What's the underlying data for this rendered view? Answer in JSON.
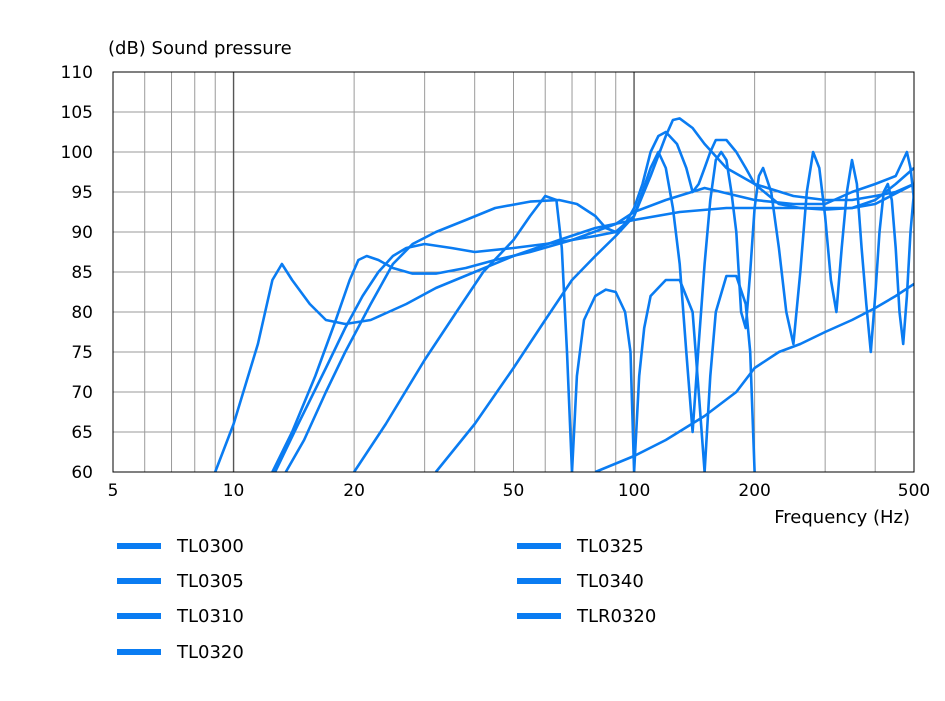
{
  "chart_data": {
    "type": "line",
    "title": "",
    "ylabel": "(dB)  Sound pressure",
    "xlabel": "Frequency  (Hz)",
    "x_scale": "log",
    "xlim": [
      5,
      500
    ],
    "ylim": [
      60,
      110
    ],
    "x_ticks": [
      5,
      10,
      20,
      50,
      100,
      200,
      500
    ],
    "x_tick_labels": [
      "5",
      "10",
      "20",
      "50",
      "100",
      "200",
      "500"
    ],
    "y_ticks": [
      60,
      65,
      70,
      75,
      80,
      85,
      90,
      95,
      100,
      105,
      110
    ],
    "y_tick_labels": [
      "60",
      "65",
      "70",
      "75",
      "80",
      "85",
      "90",
      "95",
      "100",
      "105",
      "110"
    ],
    "grid": true,
    "line_color": "#0a7cf2",
    "legend_position": "bottom",
    "series": [
      {
        "name": "TL0300",
        "points": [
          [
            9,
            60
          ],
          [
            10,
            66
          ],
          [
            11.5,
            76
          ],
          [
            12.5,
            84
          ],
          [
            13.2,
            86
          ],
          [
            14,
            84
          ],
          [
            15.5,
            81
          ],
          [
            17,
            79
          ],
          [
            19,
            78.5
          ],
          [
            22,
            79
          ],
          [
            27,
            81
          ],
          [
            32,
            83
          ],
          [
            40,
            85
          ],
          [
            50,
            87
          ],
          [
            65,
            89
          ],
          [
            80,
            90.5
          ],
          [
            100,
            91.5
          ],
          [
            130,
            92.5
          ],
          [
            170,
            93
          ],
          [
            200,
            93
          ],
          [
            250,
            93
          ],
          [
            300,
            93
          ],
          [
            350,
            93
          ],
          [
            400,
            93.5
          ],
          [
            500,
            96
          ]
        ]
      },
      {
        "name": "TL0305",
        "points": [
          [
            12.5,
            60
          ],
          [
            14,
            65
          ],
          [
            16,
            72
          ],
          [
            18,
            79
          ],
          [
            19.5,
            84
          ],
          [
            20.5,
            86.5
          ],
          [
            21.5,
            87
          ],
          [
            23,
            86.5
          ],
          [
            25,
            85.5
          ],
          [
            28,
            84.8
          ],
          [
            32,
            84.8
          ],
          [
            38,
            85.5
          ],
          [
            45,
            86.5
          ],
          [
            55,
            87.5
          ],
          [
            70,
            89
          ],
          [
            90,
            91
          ],
          [
            100,
            92.5
          ],
          [
            120,
            94
          ],
          [
            150,
            95.5
          ],
          [
            200,
            94
          ],
          [
            250,
            93.5
          ],
          [
            300,
            93.5
          ],
          [
            350,
            95
          ],
          [
            400,
            96
          ],
          [
            450,
            97
          ],
          [
            470,
            99
          ],
          [
            480,
            100
          ],
          [
            490,
            98
          ],
          [
            500,
            94
          ]
        ]
      },
      {
        "name": "TL0310",
        "points": [
          [
            12.7,
            60
          ],
          [
            14.5,
            66
          ],
          [
            17,
            73
          ],
          [
            19,
            78
          ],
          [
            21,
            82
          ],
          [
            23,
            85
          ],
          [
            25,
            87
          ],
          [
            27,
            88
          ],
          [
            30,
            88.5
          ],
          [
            35,
            88
          ],
          [
            40,
            87.5
          ],
          [
            50,
            88
          ],
          [
            60,
            88.5
          ],
          [
            70,
            89
          ],
          [
            80,
            89.5
          ],
          [
            90,
            90
          ],
          [
            100,
            92
          ],
          [
            110,
            97
          ],
          [
            120,
            102
          ],
          [
            125,
            104
          ],
          [
            130,
            104.2
          ],
          [
            140,
            103
          ],
          [
            150,
            101
          ],
          [
            170,
            98
          ],
          [
            200,
            96
          ],
          [
            250,
            94.5
          ],
          [
            300,
            94
          ],
          [
            350,
            94
          ],
          [
            400,
            94.5
          ],
          [
            450,
            95
          ],
          [
            500,
            96
          ]
        ]
      },
      {
        "name": "TL0320",
        "points": [
          [
            13.5,
            60
          ],
          [
            15,
            64
          ],
          [
            17,
            70
          ],
          [
            19,
            75
          ],
          [
            22,
            81
          ],
          [
            25,
            86
          ],
          [
            28,
            88.5
          ],
          [
            32,
            90
          ],
          [
            38,
            91.5
          ],
          [
            45,
            93
          ],
          [
            55,
            93.8
          ],
          [
            65,
            94
          ],
          [
            72,
            93.5
          ],
          [
            80,
            92
          ],
          [
            85,
            90.5
          ],
          [
            90,
            90
          ],
          [
            95,
            91
          ],
          [
            100,
            93
          ],
          [
            105,
            96
          ],
          [
            110,
            100
          ],
          [
            115,
            102
          ],
          [
            120,
            102.5
          ],
          [
            128,
            101
          ],
          [
            135,
            98
          ],
          [
            140,
            95
          ],
          [
            145,
            96
          ],
          [
            150,
            98
          ],
          [
            155,
            100
          ],
          [
            160,
            101.5
          ],
          [
            170,
            101.5
          ],
          [
            180,
            100
          ],
          [
            190,
            98
          ],
          [
            200,
            96
          ],
          [
            230,
            93.5
          ],
          [
            260,
            93
          ],
          [
            300,
            92.8
          ],
          [
            350,
            93
          ],
          [
            400,
            94
          ],
          [
            450,
            96
          ],
          [
            500,
            98
          ]
        ]
      },
      {
        "name": "TL0325",
        "points": [
          [
            20,
            60
          ],
          [
            24,
            66
          ],
          [
            30,
            74
          ],
          [
            36,
            80
          ],
          [
            42,
            85
          ],
          [
            50,
            89
          ],
          [
            55,
            92
          ],
          [
            60,
            94.5
          ],
          [
            64,
            94
          ],
          [
            66,
            88
          ],
          [
            68,
            75
          ],
          [
            70,
            60
          ],
          [
            72,
            72
          ],
          [
            75,
            79
          ],
          [
            80,
            82
          ],
          [
            85,
            82.8
          ],
          [
            90,
            82.5
          ],
          [
            95,
            80
          ],
          [
            98,
            75
          ],
          [
            100,
            60
          ],
          [
            103,
            72
          ],
          [
            106,
            78
          ],
          [
            110,
            82
          ],
          [
            120,
            84
          ],
          [
            130,
            84
          ],
          [
            140,
            80
          ],
          [
            145,
            70
          ],
          [
            150,
            60
          ],
          [
            155,
            72
          ],
          [
            160,
            80
          ],
          [
            170,
            84.5
          ],
          [
            180,
            84.5
          ],
          [
            190,
            81
          ],
          [
            195,
            75
          ],
          [
            200,
            60
          ]
        ]
      },
      {
        "name": "TL0340",
        "points": [
          [
            32,
            60
          ],
          [
            40,
            66
          ],
          [
            50,
            73
          ],
          [
            60,
            79
          ],
          [
            70,
            84
          ],
          [
            80,
            87
          ],
          [
            90,
            89.5
          ],
          [
            100,
            92
          ],
          [
            110,
            98
          ],
          [
            115,
            100
          ],
          [
            120,
            98
          ],
          [
            125,
            93
          ],
          [
            130,
            86
          ],
          [
            135,
            75
          ],
          [
            140,
            65
          ],
          [
            145,
            76
          ],
          [
            150,
            86
          ],
          [
            155,
            94
          ],
          [
            160,
            99
          ],
          [
            165,
            100
          ],
          [
            170,
            99
          ],
          [
            175,
            95
          ],
          [
            180,
            90
          ],
          [
            185,
            80
          ],
          [
            190,
            78
          ],
          [
            195,
            85
          ],
          [
            200,
            93
          ],
          [
            205,
            97
          ],
          [
            210,
            98
          ],
          [
            220,
            95
          ],
          [
            230,
            88
          ],
          [
            240,
            80
          ],
          [
            250,
            76
          ],
          [
            260,
            85
          ],
          [
            270,
            95
          ],
          [
            280,
            100
          ],
          [
            290,
            98
          ],
          [
            300,
            92
          ],
          [
            310,
            84
          ],
          [
            320,
            80
          ],
          [
            330,
            88
          ],
          [
            340,
            95
          ],
          [
            350,
            99
          ],
          [
            360,
            96
          ],
          [
            370,
            88
          ],
          [
            380,
            81
          ],
          [
            390,
            75
          ],
          [
            400,
            82
          ],
          [
            410,
            90
          ],
          [
            420,
            95
          ],
          [
            430,
            96
          ],
          [
            440,
            94
          ],
          [
            450,
            88
          ],
          [
            460,
            80
          ],
          [
            470,
            76
          ],
          [
            480,
            82
          ],
          [
            490,
            90
          ],
          [
            500,
            95
          ]
        ]
      },
      {
        "name": "TLR0320",
        "points": [
          [
            80,
            60
          ],
          [
            100,
            62
          ],
          [
            120,
            64
          ],
          [
            150,
            67
          ],
          [
            180,
            70
          ],
          [
            200,
            73
          ],
          [
            230,
            75
          ],
          [
            260,
            76
          ],
          [
            300,
            77.5
          ],
          [
            350,
            79
          ],
          [
            400,
            80.5
          ],
          [
            450,
            82
          ],
          [
            500,
            83.5
          ]
        ]
      }
    ]
  }
}
